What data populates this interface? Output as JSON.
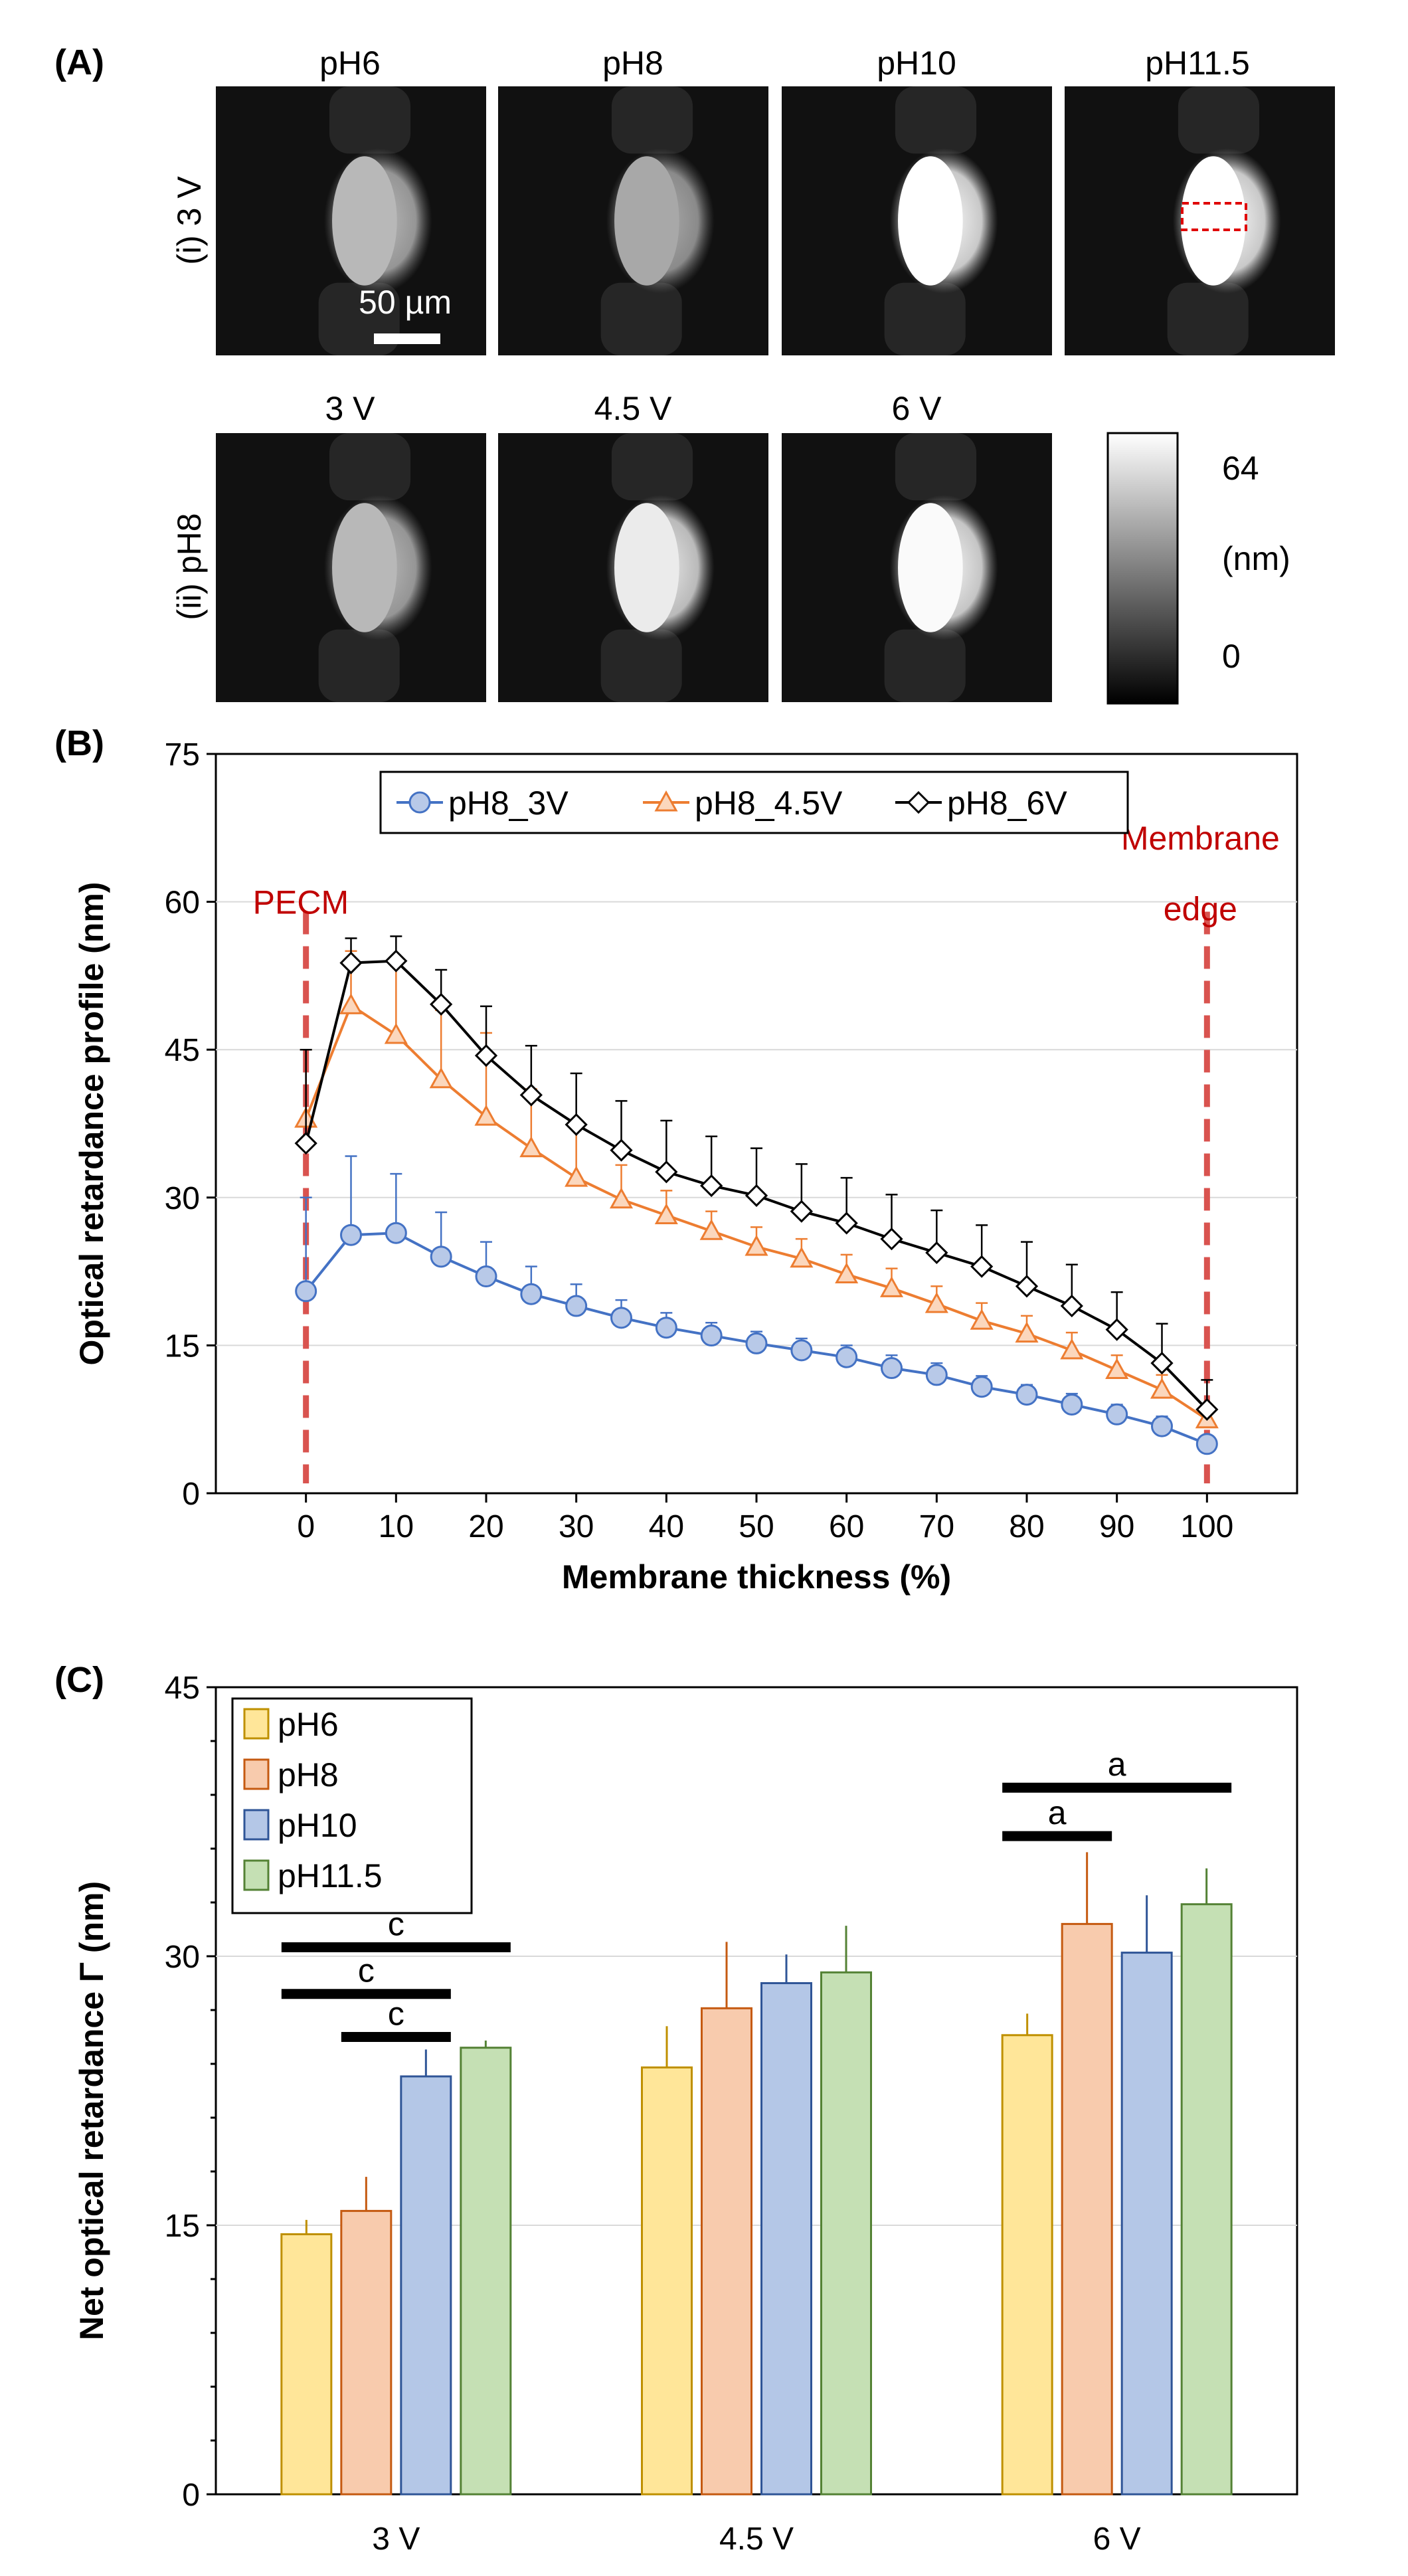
{
  "panel_a": {
    "label": "(A)",
    "row1_label": "(i) 3 V",
    "row2_label": "(ii) pH8",
    "row1_titles": [
      "pH6",
      "pH8",
      "pH10",
      "pH11.5"
    ],
    "row2_titles": [
      "3 V",
      "4.5 V",
      "6 V"
    ],
    "scale_bar": "50 µm",
    "colorbar": {
      "max": "64",
      "unit": "(nm)",
      "min": "0"
    },
    "row1_intensity": [
      0.72,
      0.66,
      1.0,
      1.0
    ],
    "row2_intensity": [
      0.72,
      0.92,
      0.98
    ]
  },
  "chart_data": [
    {
      "type": "line",
      "panel_label": "(B)",
      "xlabel": "Membrane thickness (%)",
      "ylabel": "Optical retardance profile (nm)",
      "xlim": [
        -10,
        110
      ],
      "ylim": [
        0,
        75
      ],
      "xticks": [
        0,
        10,
        20,
        30,
        40,
        50,
        60,
        70,
        80,
        90,
        100
      ],
      "yticks": [
        0,
        15,
        30,
        45,
        60,
        75
      ],
      "x": [
        0,
        5,
        10,
        15,
        20,
        25,
        30,
        35,
        40,
        45,
        50,
        55,
        60,
        65,
        70,
        75,
        80,
        85,
        90,
        95,
        100
      ],
      "series": [
        {
          "name": "pH8_3V",
          "color": "#4472C4",
          "marker": "circle",
          "values": [
            20.5,
            26.2,
            26.4,
            24.0,
            22.0,
            20.2,
            19.0,
            17.8,
            16.8,
            16.0,
            15.2,
            14.5,
            13.8,
            12.7,
            12.0,
            10.8,
            10.0,
            9.0,
            8.0,
            6.8,
            5.0
          ],
          "errors": [
            9.5,
            8.0,
            6.0,
            4.5,
            3.5,
            2.8,
            2.2,
            1.8,
            1.5,
            1.3,
            1.2,
            1.2,
            1.2,
            1.3,
            1.2,
            1.1,
            1.0,
            1.1,
            1.0,
            1.0,
            0.8
          ]
        },
        {
          "name": "pH8_4.5V",
          "color": "#ED7D31",
          "marker": "triangle",
          "values": [
            38.0,
            49.5,
            46.5,
            42.0,
            38.2,
            35.0,
            32.0,
            29.8,
            28.2,
            26.6,
            25.0,
            23.8,
            22.2,
            20.8,
            19.2,
            17.5,
            16.2,
            14.5,
            12.5,
            10.5,
            7.5
          ],
          "errors": [
            7.0,
            5.5,
            7.0,
            7.0,
            8.5,
            6.0,
            5.0,
            3.5,
            2.5,
            2.0,
            2.0,
            2.0,
            2.0,
            2.0,
            1.8,
            1.8,
            1.8,
            1.8,
            1.5,
            1.5,
            1.5
          ]
        },
        {
          "name": "pH8_6V",
          "color": "#000000",
          "marker": "diamond",
          "values": [
            35.5,
            53.8,
            54.0,
            49.6,
            44.4,
            40.4,
            37.4,
            34.8,
            32.6,
            31.2,
            30.2,
            28.6,
            27.4,
            25.8,
            24.4,
            23.0,
            21.0,
            19.0,
            16.6,
            13.2,
            8.5
          ],
          "errors": [
            9.5,
            2.5,
            2.5,
            3.5,
            5.0,
            5.0,
            5.2,
            5.0,
            5.2,
            5.0,
            4.8,
            4.8,
            4.6,
            4.5,
            4.3,
            4.2,
            4.5,
            4.2,
            3.8,
            4.0,
            3.0
          ]
        }
      ],
      "annotations": {
        "left_label": "PECM",
        "right_label_line1": "Membrane",
        "right_label_line2": "edge",
        "color": "#C00000"
      }
    },
    {
      "type": "bar",
      "panel_label": "(C)",
      "xlabel": "",
      "ylabel": "Net optical retardance Γ (nm)",
      "ylim": [
        0,
        45
      ],
      "yticks": [
        0,
        15,
        30,
        45
      ],
      "categories": [
        "3 V",
        "4.5 V",
        "6 V"
      ],
      "series": [
        {
          "name": "pH6",
          "fill": "#FFE699",
          "stroke": "#BF9000",
          "values": [
            14.5,
            23.8,
            25.6
          ],
          "errors": [
            0.8,
            2.3,
            1.2
          ]
        },
        {
          "name": "pH8",
          "fill": "#F8CBAD",
          "stroke": "#C55A11",
          "values": [
            15.8,
            27.1,
            31.8
          ],
          "errors": [
            1.9,
            3.7,
            4.0
          ]
        },
        {
          "name": "pH10",
          "fill": "#B4C7E7",
          "stroke": "#2F5597",
          "values": [
            23.3,
            28.5,
            30.2
          ],
          "errors": [
            1.5,
            1.6,
            3.2
          ]
        },
        {
          "name": "pH11.5",
          "fill": "#C5E0B4",
          "stroke": "#548235",
          "values": [
            24.9,
            29.1,
            32.9
          ],
          "errors": [
            0.4,
            2.6,
            2.0
          ]
        }
      ],
      "significance": [
        {
          "label": "c",
          "group": 0,
          "from": 0,
          "to": 3,
          "y": 30.5
        },
        {
          "label": "c",
          "group": 0,
          "from": 0,
          "to": 2,
          "y": 27.9
        },
        {
          "label": "c",
          "group": 0,
          "from": 1,
          "to": 2,
          "y": 25.5
        },
        {
          "label": "a",
          "group": 2,
          "from": 0,
          "to": 3,
          "y": 39.4
        },
        {
          "label": "a",
          "group": 2,
          "from": 0,
          "to": 1,
          "y": 36.7
        }
      ]
    }
  ]
}
